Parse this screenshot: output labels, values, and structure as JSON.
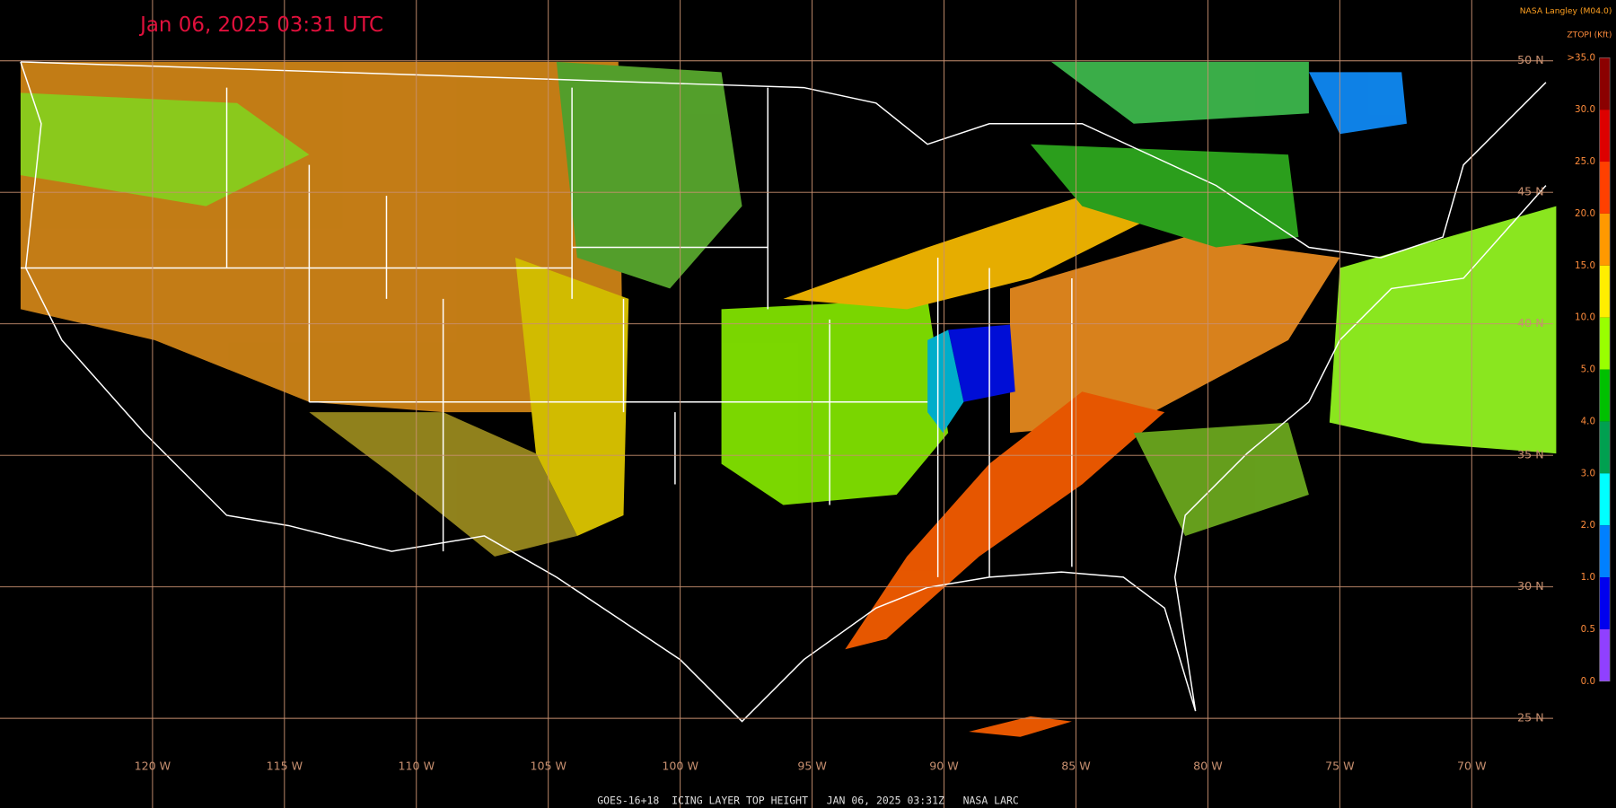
{
  "header": {
    "timestamp": "Jan 06, 2025 03:31 UTC",
    "source": "NASA Langley (M04.0)",
    "units": "ZTOPI (Kft)"
  },
  "colorbar": {
    "labels": [
      ">35.0",
      "30.0",
      "25.0",
      "20.0",
      "15.0",
      "10.0",
      "5.0",
      "4.0",
      "3.0",
      "2.0",
      "1.0",
      "0.5",
      "0.0"
    ],
    "colors": [
      "#8b0000",
      "#dd0000",
      "#ff4000",
      "#ff9900",
      "#ffee00",
      "#99ff00",
      "#00c000",
      "#00a050",
      "#00ffff",
      "#0080ff",
      "#0000ee",
      "#9040ff"
    ]
  },
  "latitude_labels": [
    "50 N",
    "45 N",
    "40 N",
    "35 N",
    "30 N",
    "25 N"
  ],
  "longitude_labels": [
    "120 W",
    "115 W",
    "110 W",
    "105 W",
    "100 W",
    "95 W",
    "90 W",
    "85 W",
    "80 W",
    "75 W",
    "70 W"
  ],
  "footer": "GOES-16+18  ICING LAYER TOP HEIGHT   JAN 06, 2025 03:31Z   NASA LARC"
}
